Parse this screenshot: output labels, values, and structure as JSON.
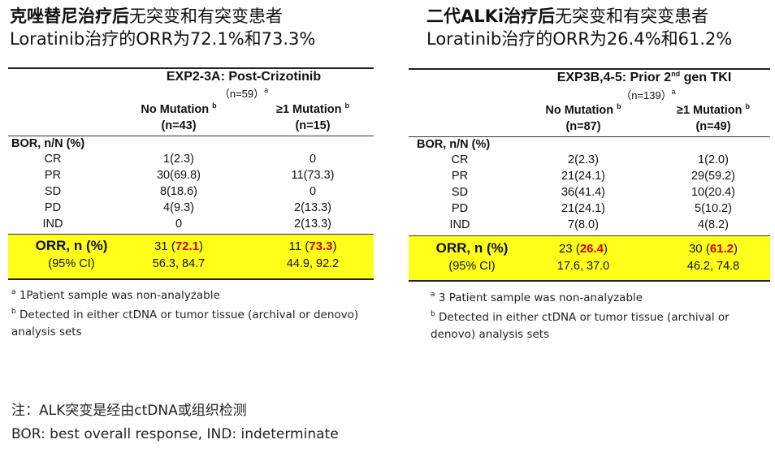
{
  "left": {
    "title_bold": "克唑替尼治疗后",
    "title_rest": "无突变和有突变患者",
    "title_line2": "Loratinib治疗的ORR为72.1%和73.3%",
    "study": "EXP2-3A: Post-Crizotinib",
    "study_n": "（n=59）",
    "study_n_sup": "a",
    "col1_label": "No Mutation",
    "col1_sup": "b",
    "col1_n": "(n=43)",
    "col2_label": "≥1 Mutation",
    "col2_sup": "b",
    "col2_n": "(n=15)",
    "bor_label": "BOR, n/N (%)",
    "rows": [
      {
        "label": "CR",
        "c1": "1(2.3)",
        "c2": "0"
      },
      {
        "label": "PR",
        "c1": "30(69.8)",
        "c2": "11(73.3)"
      },
      {
        "label": "SD",
        "c1": "8(18.6)",
        "c2": "0"
      },
      {
        "label": "PD",
        "c1": "4(9.3)",
        "c2": "2(13.3)"
      },
      {
        "label": "IND",
        "c1": "0",
        "c2": "2(13.3)"
      }
    ],
    "orr_label": "ORR, n (%)",
    "orr_c1_n": "31",
    "orr_c1_pct": "72.1",
    "orr_c2_n": "11",
    "orr_c2_pct": "73.3",
    "ci_label": "(95% CI)",
    "ci_c1": "56.3, 84.7",
    "ci_c2": "44.9, 92.2",
    "foot_a_sup": "a",
    "foot_a": "1Patient sample was non-analyzable",
    "foot_b_sup": "b",
    "foot_b": "Detected in either ctDNA or tumor tissue (archival or denovo) analysis sets"
  },
  "right": {
    "title_bold": "二代ALKi治疗后",
    "title_rest": "无突变和有突变患者",
    "title_line2": "Loratinib治疗的ORR为26.4%和61.2%",
    "study_pre": "EXP3B,4-5: Prior 2",
    "study_sup": "nd",
    "study_post": " gen TKI",
    "study_n": "（n=139）",
    "study_n_sup": "a",
    "col1_label": "No Mutation",
    "col1_sup": "b",
    "col1_n": "(n=87)",
    "col2_label": "≥1 Mutation",
    "col2_sup": "b",
    "col2_n": "(n=49)",
    "bor_label": "BOR, n/N (%)",
    "rows": [
      {
        "label": "CR",
        "c1": "2(2.3)",
        "c2": "1(2.0)"
      },
      {
        "label": "PR",
        "c1": "21(24.1)",
        "c2": "29(59.2)"
      },
      {
        "label": "SD",
        "c1": "36(41.4)",
        "c2": "10(20.4)"
      },
      {
        "label": "PD",
        "c1": "21(24.1)",
        "c2": "5(10.2)"
      },
      {
        "label": "IND",
        "c1": "7(8.0)",
        "c2": "4(8.2)"
      }
    ],
    "orr_label": "ORR, n (%)",
    "orr_c1_n": "23",
    "orr_c1_pct": "26.4",
    "orr_c2_n": "30",
    "orr_c2_pct": "61.2",
    "ci_label": "(95% CI)",
    "ci_c1": "17.6, 37.0",
    "ci_c2": "46.2, 74.8",
    "foot_a_sup": "a",
    "foot_a": "3 Patient sample was non-analyzable",
    "foot_b_sup": "b",
    "foot_b": "Detected in either ctDNA or tumor tissue (archival or denovo) analysis sets"
  },
  "notes": {
    "line1": "注：ALK突变是经由ctDNA或组织检测",
    "line2": "BOR: best overall response,   IND: indeterminate"
  },
  "colors": {
    "highlight": "#ffff1a",
    "emphasis": "#d10000"
  }
}
